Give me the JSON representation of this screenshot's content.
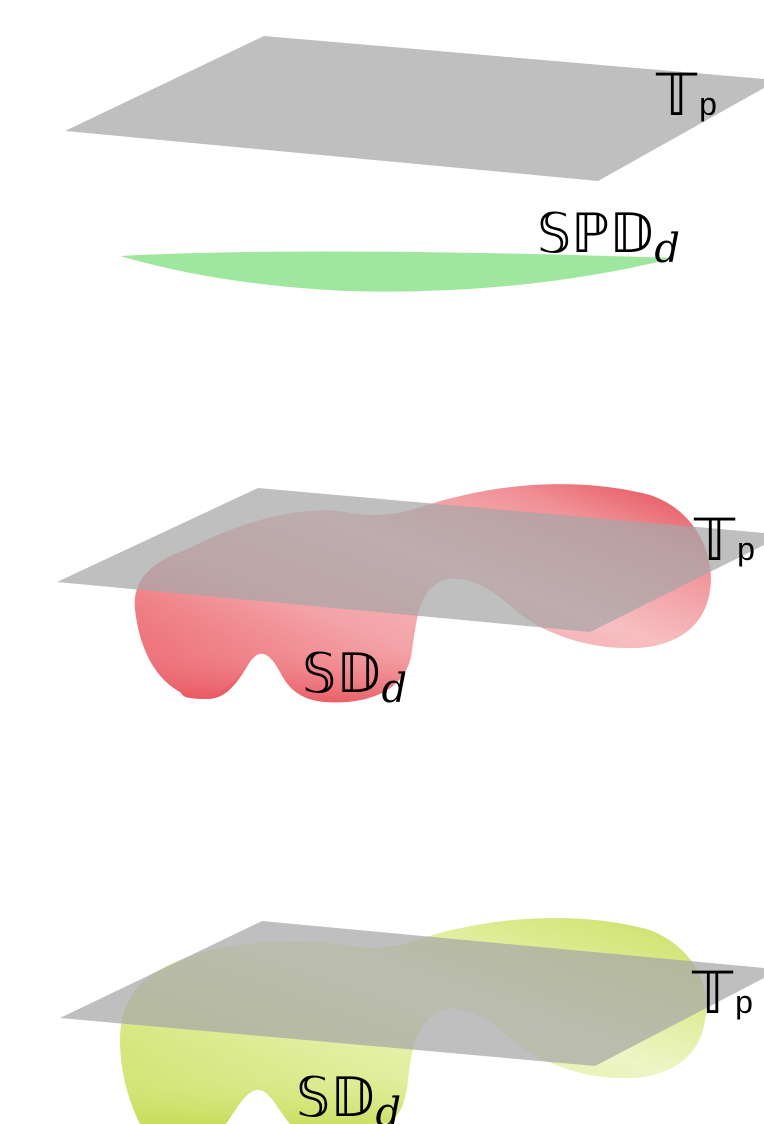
{
  "panels": [
    {
      "id": "top",
      "plane_label": "𝕋",
      "plane_label_sub": "p",
      "manifold_label": "𝕊ℙ𝔻",
      "manifold_label_sub": "d",
      "plane_color": "#bfbfbf",
      "manifold_color": "#9fe79f"
    },
    {
      "id": "middle",
      "plane_label": "𝕋",
      "plane_label_sub": "p",
      "manifold_label": "𝕊𝔻",
      "manifold_label_sub": "d",
      "plane_color": "#a6a6a6",
      "manifold_color_dark": "#e9505a",
      "manifold_color_light": "#f7c5c8"
    },
    {
      "id": "bottom",
      "plane_label": "𝕋",
      "plane_label_sub": "p",
      "manifold_label": "𝕊𝔻",
      "manifold_label_sub": "d",
      "plane_color": "#a6a6a6",
      "manifold_color_dark": "#cde06a",
      "manifold_color_light": "#eef5c8"
    }
  ]
}
